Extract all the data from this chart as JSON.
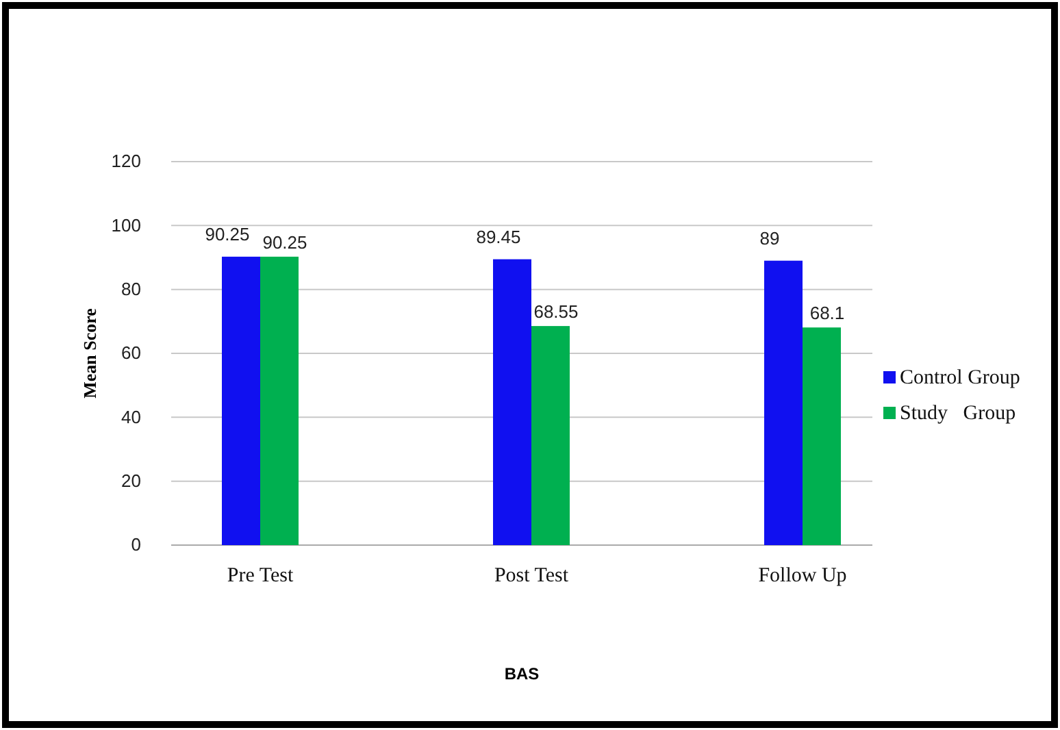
{
  "chart_data": {
    "type": "bar",
    "xlabel": "BAS",
    "ylabel": "Mean Score",
    "categories": [
      "Pre Test",
      "Post Test",
      "Follow Up"
    ],
    "series": [
      {
        "name": "Control Group",
        "color": "#1010f0",
        "values": [
          90.25,
          89.45,
          89
        ]
      },
      {
        "name": "Study   Group",
        "color": "#00b050",
        "values": [
          90.25,
          68.55,
          68.1
        ]
      }
    ],
    "ylim": [
      0,
      120
    ],
    "yticks": [
      0,
      20,
      40,
      60,
      80,
      100,
      120
    ],
    "grid": "y",
    "legend": "right",
    "data_labels": true
  }
}
